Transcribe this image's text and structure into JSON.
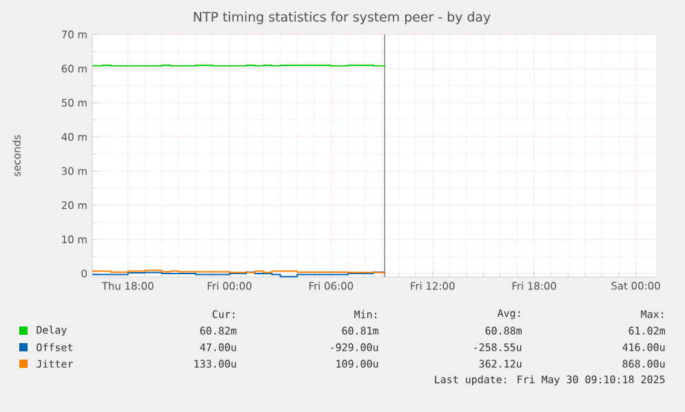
{
  "chart_data": {
    "type": "step",
    "title": "NTP timing statistics for system peer - by day",
    "ylabel": "seconds",
    "xlim": [
      "2025-05-29T15:54",
      "2025-05-31T01:12"
    ],
    "ylim": [
      -1,
      70
    ],
    "xticks": [
      {
        "value": "2025-05-29T18:00",
        "label": "Thu 18:00"
      },
      {
        "value": "2025-05-30T00:00",
        "label": "Fri 00:00"
      },
      {
        "value": "2025-05-30T06:00",
        "label": "Fri 06:00"
      },
      {
        "value": "2025-05-30T12:00",
        "label": "Fri 12:00"
      },
      {
        "value": "2025-05-30T18:00",
        "label": "Fri 18:00"
      },
      {
        "value": "2025-05-31T00:00",
        "label": "Sat 00:00"
      }
    ],
    "yticks": [
      {
        "value": 0,
        "label": "0"
      },
      {
        "value": 10,
        "label": "10 m"
      },
      {
        "value": 20,
        "label": "20 m"
      },
      {
        "value": 30,
        "label": "30 m"
      },
      {
        "value": 40,
        "label": "40 m"
      },
      {
        "value": 50,
        "label": "50 m"
      },
      {
        "value": 60,
        "label": "60 m"
      },
      {
        "value": 70,
        "label": "70 m"
      }
    ],
    "grid": true,
    "legend": "bottom",
    "x": [
      "2025-05-29T15:54",
      "2025-05-29T16:30",
      "2025-05-29T17:00",
      "2025-05-29T18:00",
      "2025-05-29T19:00",
      "2025-05-29T20:00",
      "2025-05-29T20:30",
      "2025-05-29T21:00",
      "2025-05-29T22:00",
      "2025-05-29T23:00",
      "2025-05-30T00:00",
      "2025-05-30T01:00",
      "2025-05-30T01:30",
      "2025-05-30T02:00",
      "2025-05-30T02:30",
      "2025-05-30T03:00",
      "2025-05-30T04:00",
      "2025-05-30T05:00",
      "2025-05-30T06:00",
      "2025-05-30T07:00",
      "2025-05-30T08:00",
      "2025-05-30T08:30",
      "2025-05-30T09:10"
    ],
    "series": [
      {
        "name": "Delay",
        "color": "#00cc00",
        "values": [
          60.8,
          61.0,
          60.8,
          60.8,
          60.8,
          61.0,
          60.8,
          60.8,
          61.0,
          60.8,
          60.8,
          61.0,
          60.8,
          61.0,
          60.8,
          61.0,
          61.0,
          61.0,
          60.8,
          61.0,
          61.0,
          60.8,
          60.8
        ]
      },
      {
        "name": "Offset",
        "color": "#0066b3",
        "values": [
          -0.3,
          -0.3,
          -0.3,
          0.2,
          0.3,
          0.0,
          0.0,
          0.0,
          -0.3,
          -0.3,
          0.0,
          0.4,
          0.0,
          0.0,
          -0.3,
          -0.9,
          -0.3,
          -0.3,
          -0.3,
          0.0,
          0.0,
          0.4,
          0.0
        ]
      },
      {
        "name": "Jitter",
        "color": "#ff8000",
        "values": [
          0.7,
          0.7,
          0.4,
          0.7,
          0.9,
          0.5,
          0.7,
          0.5,
          0.5,
          0.5,
          0.3,
          0.3,
          0.7,
          0.3,
          0.7,
          0.7,
          0.4,
          0.4,
          0.4,
          0.3,
          0.3,
          0.3,
          0.1
        ]
      }
    ],
    "ref_lines": [
      {
        "axis": "x",
        "value": "2025-05-30T09:10",
        "color": "#888888"
      }
    ],
    "annotations": [
      "Cur:",
      "Min:",
      "Avg:",
      "Max:",
      "60.82m",
      "60.81m",
      "60.88m",
      "61.02m",
      "47.00u",
      "-929.00u",
      "-258.55u",
      "416.00u",
      "133.00u",
      "109.00u",
      "362.12u",
      "868.00u",
      "Last update: Fri May 30 09:10:18 2025"
    ]
  }
}
